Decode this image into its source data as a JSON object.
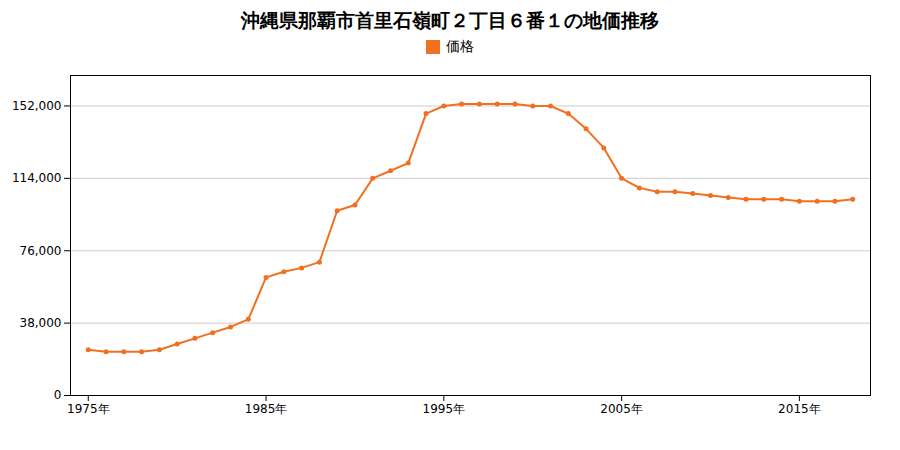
{
  "chart_data": {
    "type": "line",
    "title": "沖縄県那覇市首里石嶺町２丁目６番１の地価推移",
    "x": [
      1975,
      1976,
      1977,
      1978,
      1979,
      1980,
      1981,
      1982,
      1983,
      1984,
      1985,
      1986,
      1987,
      1988,
      1989,
      1990,
      1991,
      1992,
      1993,
      1994,
      1995,
      1996,
      1997,
      1998,
      1999,
      2000,
      2001,
      2002,
      2003,
      2004,
      2005,
      2006,
      2007,
      2008,
      2009,
      2010,
      2011,
      2012,
      2013,
      2014,
      2015,
      2016,
      2017,
      2018
    ],
    "series": [
      {
        "name": "価格",
        "color": "#f07020",
        "marker": "circle",
        "values": [
          24000,
          23000,
          23000,
          23000,
          24000,
          27000,
          30000,
          33000,
          36000,
          40000,
          62000,
          65000,
          67000,
          70000,
          97000,
          100000,
          114000,
          118000,
          122000,
          148000,
          152000,
          153000,
          153000,
          153000,
          153000,
          152000,
          152000,
          148000,
          140000,
          130000,
          114000,
          109000,
          107000,
          107000,
          106000,
          105000,
          104000,
          103000,
          103000,
          103000,
          102000,
          102000,
          102000,
          103000
        ]
      }
    ],
    "xlim": [
      1974,
      2019
    ],
    "xticks": [
      {
        "value": 1975,
        "label": "1975年"
      },
      {
        "value": 1985,
        "label": "1985年"
      },
      {
        "value": 1995,
        "label": "1995年"
      },
      {
        "value": 2005,
        "label": "2005年"
      },
      {
        "value": 2015,
        "label": "2015年"
      }
    ],
    "ylim": [
      0,
      168000
    ],
    "yticks": [
      0,
      {
        "value": 38000,
        "label": "38,000"
      },
      {
        "value": 76000,
        "label": "76,000"
      },
      {
        "value": 114000,
        "label": "114,000"
      },
      {
        "value": 152000,
        "label": "152,000"
      }
    ],
    "grid": "y",
    "legend": "top"
  }
}
